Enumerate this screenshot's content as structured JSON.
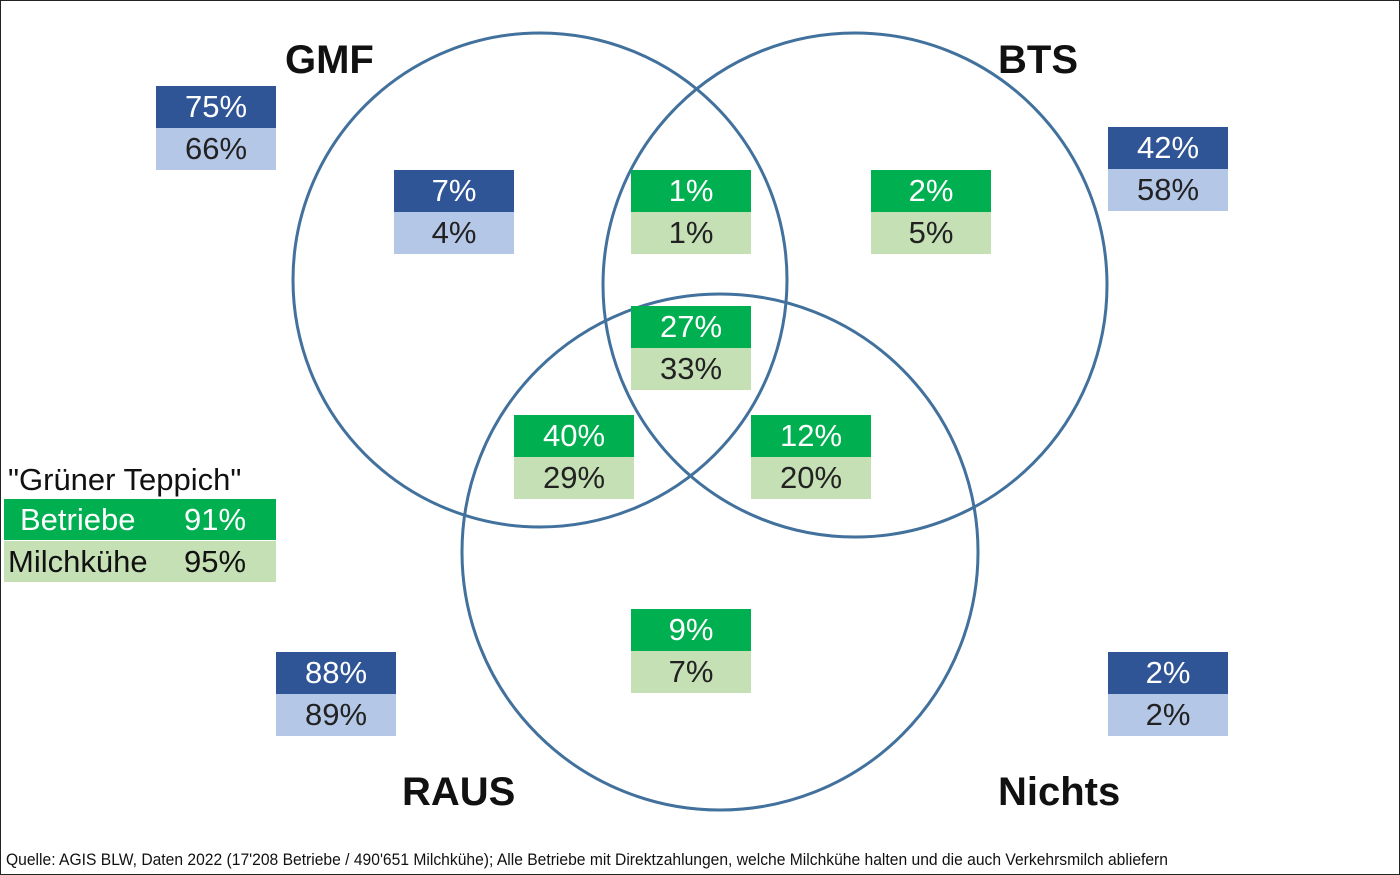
{
  "sets": {
    "gmf": "GMF",
    "bts": "BTS",
    "raus": "RAUS",
    "nichts": "Nichts"
  },
  "colors": {
    "circle": "#41719C",
    "betriebe_only": "#2F5597",
    "kuehe_only": "#B4C7E7",
    "betriebe_overlap": "#00B050",
    "kuehe_overlap": "#C5E0B4"
  },
  "regions": {
    "gmf_only_outside": {
      "betriebe": "75%",
      "kuehe": "66%"
    },
    "gmf_only": {
      "betriebe": "7%",
      "kuehe": "4%"
    },
    "gmf_bts": {
      "betriebe": "1%",
      "kuehe": "1%"
    },
    "bts_only": {
      "betriebe": "2%",
      "kuehe": "5%"
    },
    "bts_outside": {
      "betriebe": "42%",
      "kuehe": "58%"
    },
    "all_three": {
      "betriebe": "27%",
      "kuehe": "33%"
    },
    "gmf_raus": {
      "betriebe": "40%",
      "kuehe": "29%"
    },
    "bts_raus": {
      "betriebe": "12%",
      "kuehe": "20%"
    },
    "raus_only": {
      "betriebe": "9%",
      "kuehe": "7%"
    },
    "raus_outside": {
      "betriebe": "88%",
      "kuehe": "89%"
    },
    "nichts": {
      "betriebe": "2%",
      "kuehe": "2%"
    }
  },
  "legend": {
    "title": "\"Grüner Teppich\"",
    "betriebe_label": "Betriebe",
    "betriebe_value": "91%",
    "kuehe_label": "Milchkühe",
    "kuehe_value": "95%"
  },
  "source": "Quelle: AGIS BLW, Daten 2022 (17'208 Betriebe / 490'651 Milchkühe); Alle Betriebe mit Direktzahlungen, welche Milchkühe halten und die auch Verkehrsmilch abliefern"
}
